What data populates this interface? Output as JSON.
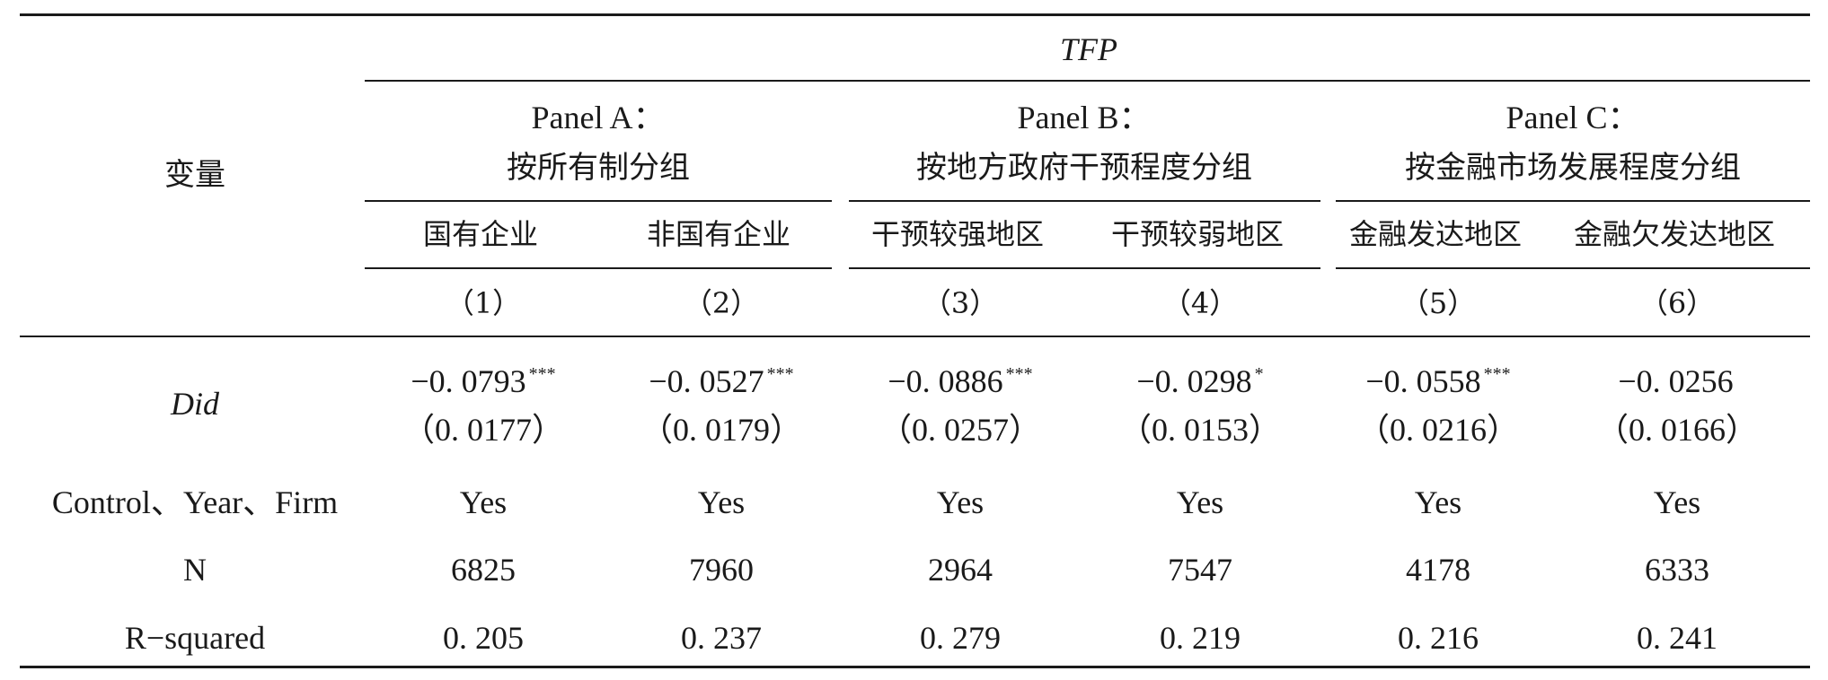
{
  "header": {
    "variable_label": "变量",
    "dep_var": "TFP",
    "panels": [
      {
        "title": "Panel A：",
        "subtitle": "按所有制分组"
      },
      {
        "title": "Panel B：",
        "subtitle": "按地方政府干预程度分组"
      },
      {
        "title": "Panel C：",
        "subtitle": "按金融市场发展程度分组"
      }
    ],
    "groups": [
      "国有企业",
      "非国有企业",
      "干预较强地区",
      "干预较弱地区",
      "金融发达地区",
      "金融欠发达地区"
    ],
    "col_numbers": [
      "（1）",
      "（2）",
      "（3）",
      "（4）",
      "（5）",
      "（6）"
    ]
  },
  "rows": {
    "did": {
      "label": "Did",
      "coef": [
        "−0. 0793",
        "−0. 0527",
        "−0. 0886",
        "−0. 0298",
        "−0. 0558",
        "−0. 0256"
      ],
      "stars": [
        "***",
        "***",
        "***",
        "*",
        "***",
        ""
      ],
      "se": [
        "（0. 0177）",
        "（0. 0179）",
        "（0. 0257）",
        "（0. 0153）",
        "（0. 0216）",
        "（0. 0166）"
      ]
    },
    "controls": {
      "label": "Control、Year、Firm",
      "values": [
        "Yes",
        "Yes",
        "Yes",
        "Yes",
        "Yes",
        "Yes"
      ]
    },
    "n": {
      "label": "N",
      "values": [
        "6825",
        "7960",
        "2964",
        "7547",
        "4178",
        "6333"
      ]
    },
    "r2": {
      "label": "R−squared",
      "values": [
        "0. 205",
        "0. 237",
        "0. 279",
        "0. 219",
        "0. 216",
        "0. 241"
      ]
    }
  }
}
